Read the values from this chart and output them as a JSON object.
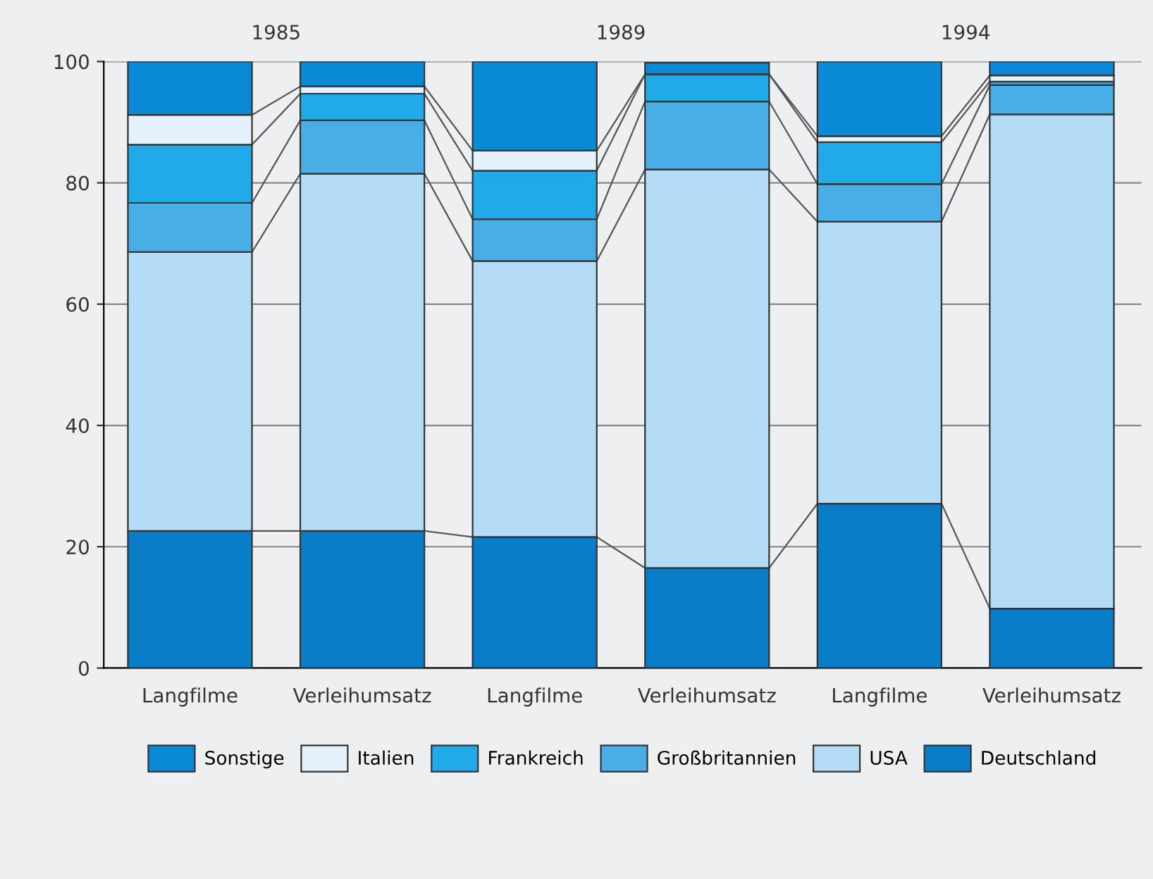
{
  "chart_data": {
    "type": "bar",
    "stacked": true,
    "categories": [
      "Langfilme",
      "Verleihumsatz",
      "Langfilme",
      "Verleihumsatz",
      "Langfilme",
      "Verleihumsatz"
    ],
    "series": [
      {
        "name": "Deutschland",
        "color": "#0a7dc8",
        "values": [
          22.6,
          22.6,
          21.6,
          16.5,
          27.1,
          9.8
        ]
      },
      {
        "name": "USA",
        "color": "#b4dcf6",
        "values": [
          46.0,
          58.9,
          45.5,
          65.7,
          46.5,
          81.5
        ]
      },
      {
        "name": "Großbritannien",
        "color": "#4aaee6",
        "values": [
          8.1,
          8.8,
          6.9,
          11.2,
          6.2,
          4.8
        ]
      },
      {
        "name": "Frankreich",
        "color": "#22a9ea",
        "values": [
          9.6,
          4.4,
          8.0,
          4.5,
          6.9,
          0.6
        ]
      },
      {
        "name": "Italien",
        "color": "#e6f2fb",
        "values": [
          4.9,
          1.2,
          3.3,
          null,
          1.0,
          1.0
        ]
      },
      {
        "name": "Sonstige",
        "color": "#0a8ad6",
        "values": [
          8.8,
          4.1,
          14.7,
          1.9,
          12.3,
          2.3
        ]
      }
    ],
    "annotations": [
      "1985",
      "1989",
      "1994"
    ],
    "ylim": [
      0,
      100
    ],
    "yticks": [
      0,
      20,
      40,
      60,
      80,
      100
    ],
    "grid": "y",
    "legend": "bottom"
  }
}
